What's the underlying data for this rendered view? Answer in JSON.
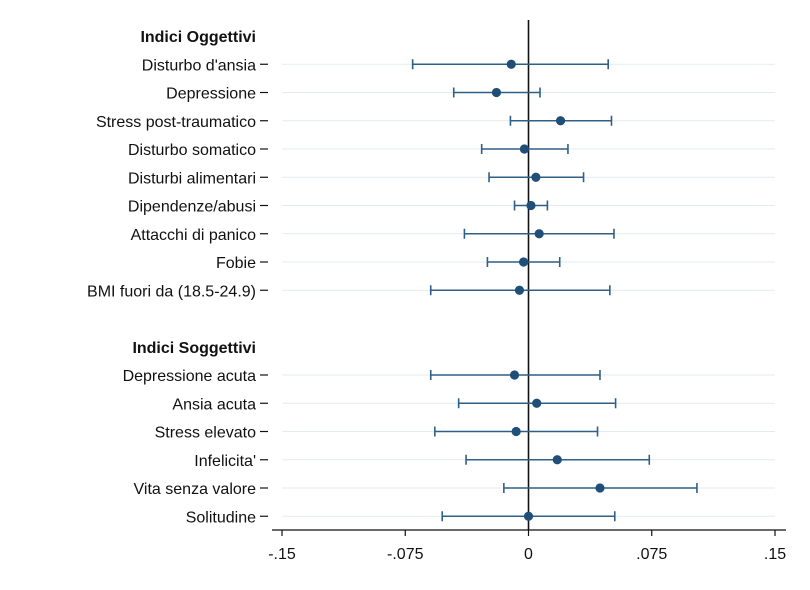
{
  "chart_data": {
    "type": "forest",
    "xlim": [
      -0.15,
      0.15
    ],
    "xticks": [
      {
        "value": -0.15,
        "label": "-.15"
      },
      {
        "value": -0.075,
        "label": "-.075"
      },
      {
        "value": 0,
        "label": "0"
      },
      {
        "value": 0.075,
        "label": ".075"
      },
      {
        "value": 0.15,
        "label": ".15"
      }
    ],
    "reference_line": 0,
    "grid": true,
    "colors": {
      "marker": "#1f4e79",
      "ci": "#2f5f86",
      "grid": "#e3ebf2",
      "axis": "#111111"
    },
    "rows": [
      {
        "kind": "header",
        "label": "Indici Oggettivi"
      },
      {
        "kind": "item",
        "label": "Disturbo d'ansia",
        "estimate": -0.0105,
        "ci_low": -0.0705,
        "ci_high": 0.0485
      },
      {
        "kind": "item",
        "label": "Depressione",
        "estimate": -0.0195,
        "ci_low": -0.0455,
        "ci_high": 0.007
      },
      {
        "kind": "item",
        "label": "Stress post-traumatico",
        "estimate": 0.0195,
        "ci_low": -0.011,
        "ci_high": 0.0505
      },
      {
        "kind": "item",
        "label": "Disturbo somatico",
        "estimate": -0.0025,
        "ci_low": -0.0285,
        "ci_high": 0.024
      },
      {
        "kind": "item",
        "label": "Disturbi alimentari",
        "estimate": 0.0045,
        "ci_low": -0.024,
        "ci_high": 0.0335
      },
      {
        "kind": "item",
        "label": "Dipendenze/abusi",
        "estimate": 0.0015,
        "ci_low": -0.0085,
        "ci_high": 0.0115
      },
      {
        "kind": "item",
        "label": "Attacchi di panico",
        "estimate": 0.0065,
        "ci_low": -0.039,
        "ci_high": 0.052
      },
      {
        "kind": "item",
        "label": "Fobie",
        "estimate": -0.003,
        "ci_low": -0.025,
        "ci_high": 0.019
      },
      {
        "kind": "item",
        "label": "BMI fuori da (18.5-24.9)",
        "estimate": -0.0055,
        "ci_low": -0.0595,
        "ci_high": 0.0495
      },
      {
        "kind": "spacer",
        "label": ""
      },
      {
        "kind": "header",
        "label": "Indici Soggettivi"
      },
      {
        "kind": "item",
        "label": "Depressione acuta",
        "estimate": -0.0085,
        "ci_low": -0.0595,
        "ci_high": 0.0435
      },
      {
        "kind": "item",
        "label": "Ansia acuta",
        "estimate": 0.005,
        "ci_low": -0.0425,
        "ci_high": 0.053
      },
      {
        "kind": "item",
        "label": "Stress elevato",
        "estimate": -0.0075,
        "ci_low": -0.057,
        "ci_high": 0.042
      },
      {
        "kind": "item",
        "label": "Infelicita'",
        "estimate": 0.0175,
        "ci_low": -0.038,
        "ci_high": 0.0735
      },
      {
        "kind": "item",
        "label": "Vita senza valore",
        "estimate": 0.0435,
        "ci_low": -0.015,
        "ci_high": 0.1025
      },
      {
        "kind": "item",
        "label": "Solitudine",
        "estimate": 0.0,
        "ci_low": -0.0525,
        "ci_high": 0.0525
      }
    ]
  }
}
